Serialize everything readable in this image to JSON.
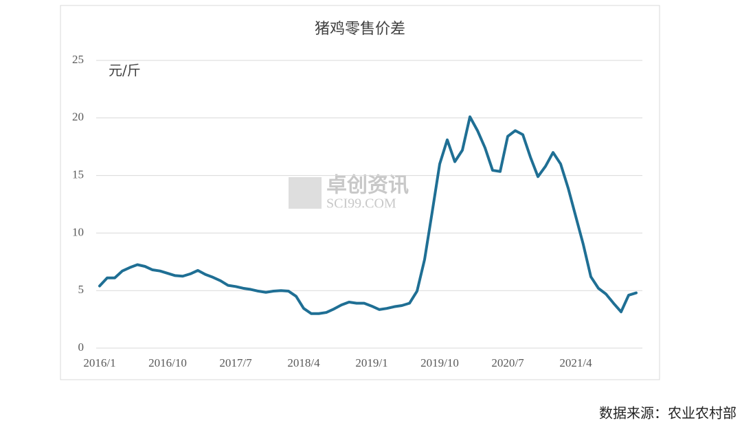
{
  "chart_data": {
    "type": "line",
    "title": "猪鸡零售价差",
    "y_unit": "元/斤",
    "watermark": [
      "卓创资讯",
      "SCI99.COM"
    ],
    "source": "数据来源：农业农村部",
    "categories": [
      "2016/1",
      null,
      null,
      null,
      null,
      null,
      null,
      null,
      null,
      "2016/10",
      null,
      null,
      null,
      null,
      null,
      null,
      null,
      null,
      "2017/7",
      null,
      null,
      null,
      null,
      null,
      null,
      null,
      null,
      "2018/4",
      null,
      null,
      null,
      null,
      null,
      null,
      null,
      null,
      "2019/1",
      null,
      null,
      null,
      null,
      null,
      null,
      null,
      null,
      "2019/10",
      null,
      null,
      null,
      null,
      null,
      null,
      null,
      null,
      "2020/7",
      null,
      null,
      null,
      null,
      null,
      null,
      null,
      null,
      "2021/4",
      null,
      null,
      null,
      null,
      null,
      null,
      null,
      null
    ],
    "values": [
      5.4,
      6.1,
      6.1,
      6.7,
      7.0,
      7.25,
      7.1,
      6.8,
      6.7,
      6.5,
      6.3,
      6.25,
      6.45,
      6.75,
      6.4,
      6.15,
      5.85,
      5.45,
      5.35,
      5.2,
      5.1,
      4.95,
      4.85,
      4.95,
      5.0,
      4.95,
      4.5,
      3.45,
      3.0,
      3.0,
      3.1,
      3.4,
      3.75,
      4.0,
      3.9,
      3.9,
      3.65,
      3.35,
      3.45,
      3.6,
      3.7,
      3.9,
      4.95,
      7.7,
      11.8,
      16.0,
      18.1,
      16.2,
      17.2,
      20.1,
      18.9,
      17.4,
      15.45,
      15.35,
      18.4,
      18.9,
      18.55,
      16.6,
      14.9,
      15.8,
      17.0,
      16.0,
      13.9,
      11.45,
      9.0,
      6.2,
      5.2,
      4.7,
      3.9,
      3.15,
      4.6,
      4.8
    ],
    "color": "#1f6f94",
    "ylim": [
      0,
      25
    ],
    "yticks": [
      0,
      5,
      10,
      15,
      20,
      25
    ],
    "grid": true
  }
}
